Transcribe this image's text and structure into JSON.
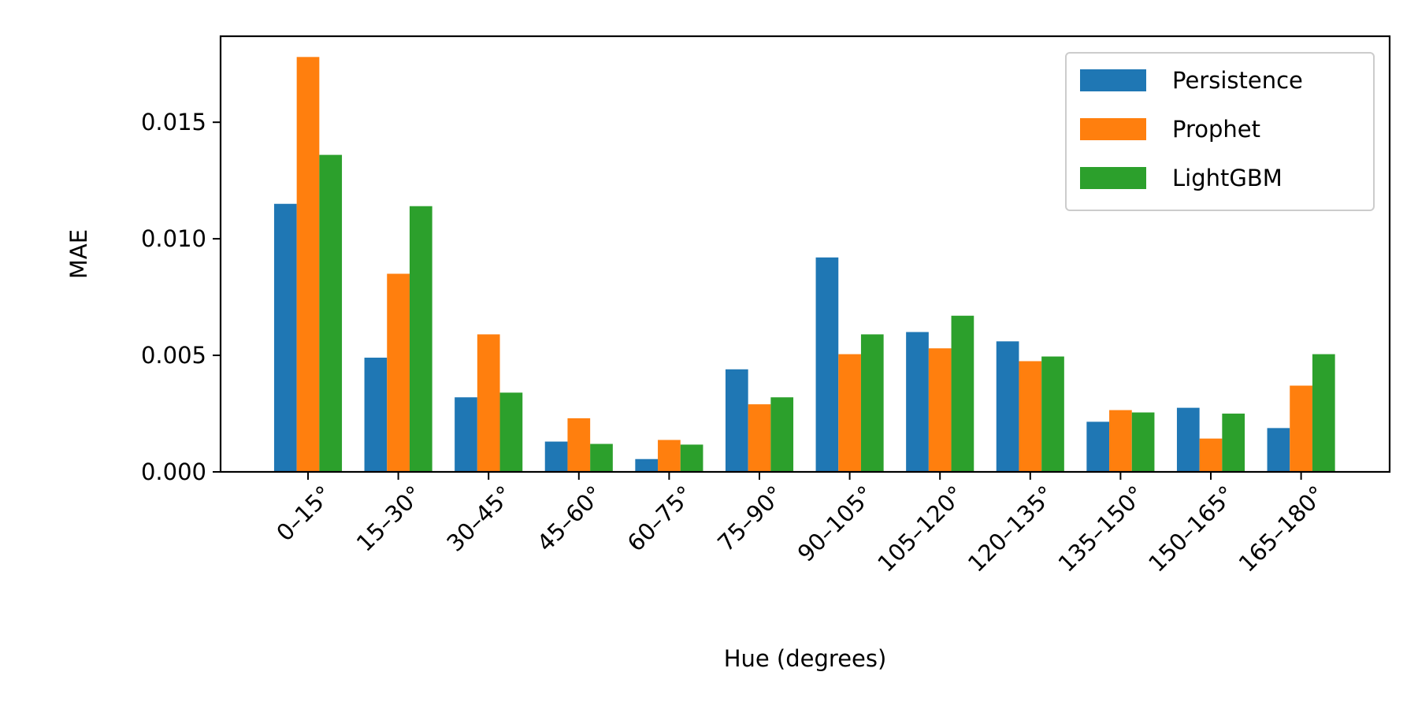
{
  "chart_data": {
    "type": "bar",
    "title": "",
    "xlabel": "Hue (degrees)",
    "ylabel": "MAE",
    "categories": [
      "0–15°",
      "15–30°",
      "30–45°",
      "45–60°",
      "60–75°",
      "75–90°",
      "90–105°",
      "105–120°",
      "120–135°",
      "135–150°",
      "150–165°",
      "165–180°"
    ],
    "series": [
      {
        "name": "Persistence",
        "color": "#1f77b4",
        "values": [
          0.0115,
          0.0049,
          0.0032,
          0.0013,
          0.00055,
          0.0044,
          0.0092,
          0.006,
          0.0056,
          0.00215,
          0.00275,
          0.00188
        ]
      },
      {
        "name": "Prophet",
        "color": "#ff7f0e",
        "values": [
          0.0178,
          0.0085,
          0.0059,
          0.0023,
          0.00137,
          0.0029,
          0.00505,
          0.0053,
          0.00475,
          0.00265,
          0.00143,
          0.0037
        ]
      },
      {
        "name": "LightGBM",
        "color": "#2ca02c",
        "values": [
          0.0136,
          0.0114,
          0.0034,
          0.0012,
          0.00117,
          0.0032,
          0.0059,
          0.0067,
          0.00495,
          0.00255,
          0.0025,
          0.00505
        ]
      }
    ],
    "yticks": [
      "0.000",
      "0.005",
      "0.010",
      "0.015"
    ],
    "ytick_values": [
      0,
      0.005,
      0.01,
      0.015
    ],
    "ylim": [
      0,
      0.01869
    ],
    "grid": false,
    "legend_position": "upper right"
  }
}
